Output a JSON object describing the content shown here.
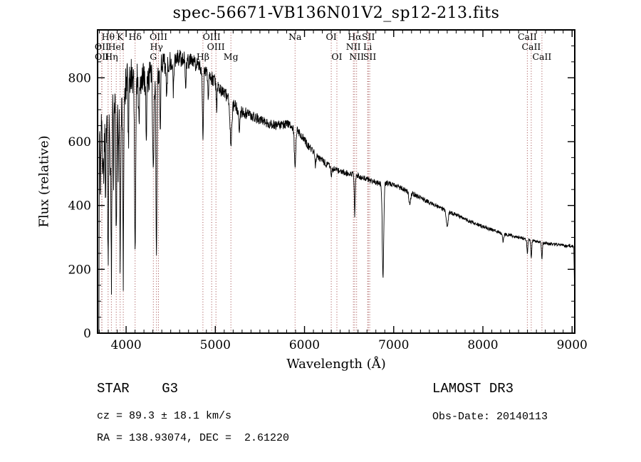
{
  "title": "spec-56671-VB136N01V2_sp12-213.fits",
  "chart_data": {
    "type": "line",
    "title": "spec-56671-VB136N01V2_sp12-213.fits",
    "xlabel": "Wavelength (Å)",
    "ylabel": "Flux (relative)",
    "xlim": [
      3680,
      9030
    ],
    "ylim": [
      0,
      950
    ],
    "xticks": [
      4000,
      5000,
      6000,
      7000,
      8000,
      9000
    ],
    "yticks": [
      0,
      200,
      400,
      600,
      800
    ],
    "x_minor_step": 100,
    "y_minor_step": 50,
    "grid": false,
    "legend": "none",
    "line_color": "#000000",
    "marker_line_color": "#a04848",
    "sample_step": 3,
    "continuum": [
      [
        3695,
        0
      ],
      [
        3700,
        620
      ],
      [
        3715,
        690
      ],
      [
        3730,
        665
      ],
      [
        3745,
        690
      ],
      [
        3760,
        670
      ],
      [
        3780,
        690
      ],
      [
        3800,
        700
      ],
      [
        3830,
        715
      ],
      [
        3860,
        720
      ],
      [
        3900,
        730
      ],
      [
        3940,
        720
      ],
      [
        3970,
        710
      ],
      [
        4000,
        790
      ],
      [
        4040,
        805
      ],
      [
        4080,
        800
      ],
      [
        4120,
        795
      ],
      [
        4160,
        790
      ],
      [
        4200,
        800
      ],
      [
        4240,
        795
      ],
      [
        4280,
        820
      ],
      [
        4320,
        825
      ],
      [
        4360,
        820
      ],
      [
        4400,
        840
      ],
      [
        4450,
        850
      ],
      [
        4500,
        855
      ],
      [
        4550,
        860
      ],
      [
        4600,
        862
      ],
      [
        4650,
        858
      ],
      [
        4700,
        853
      ],
      [
        4750,
        848
      ],
      [
        4800,
        843
      ],
      [
        4850,
        830
      ],
      [
        4900,
        812
      ],
      [
        4950,
        800
      ],
      [
        5000,
        785
      ],
      [
        5050,
        765
      ],
      [
        5100,
        750
      ],
      [
        5150,
        735
      ],
      [
        5200,
        715
      ],
      [
        5250,
        705
      ],
      [
        5300,
        695
      ],
      [
        5350,
        688
      ],
      [
        5400,
        683
      ],
      [
        5450,
        675
      ],
      [
        5500,
        668
      ],
      [
        5550,
        662
      ],
      [
        5600,
        657
      ],
      [
        5650,
        653
      ],
      [
        5700,
        650
      ],
      [
        5750,
        652
      ],
      [
        5800,
        655
      ],
      [
        5850,
        650
      ],
      [
        5900,
        640
      ],
      [
        5950,
        625
      ],
      [
        6000,
        605
      ],
      [
        6050,
        585
      ],
      [
        6100,
        568
      ],
      [
        6150,
        553
      ],
      [
        6200,
        540
      ],
      [
        6250,
        528
      ],
      [
        6300,
        518
      ],
      [
        6350,
        512
      ],
      [
        6400,
        508
      ],
      [
        6450,
        503
      ],
      [
        6500,
        500
      ],
      [
        6550,
        497
      ],
      [
        6600,
        492
      ],
      [
        6650,
        487
      ],
      [
        6700,
        482
      ],
      [
        6750,
        477
      ],
      [
        6800,
        472
      ],
      [
        6850,
        468
      ],
      [
        6900,
        470
      ],
      [
        6950,
        468
      ],
      [
        7000,
        465
      ],
      [
        7100,
        452
      ],
      [
        7200,
        438
      ],
      [
        7300,
        424
      ],
      [
        7400,
        410
      ],
      [
        7500,
        396
      ],
      [
        7600,
        383
      ],
      [
        7700,
        370
      ],
      [
        7800,
        357
      ],
      [
        7900,
        345
      ],
      [
        8000,
        334
      ],
      [
        8100,
        324
      ],
      [
        8200,
        315
      ],
      [
        8300,
        307
      ],
      [
        8400,
        300
      ],
      [
        8500,
        293
      ],
      [
        8600,
        287
      ],
      [
        8700,
        282
      ],
      [
        8800,
        278
      ],
      [
        8900,
        275
      ],
      [
        9000,
        272
      ],
      [
        9020,
        270
      ],
      [
        9028,
        120
      ],
      [
        9030,
        0
      ]
    ],
    "absorption_lines": [
      [
        3712,
        180,
        4
      ],
      [
        3735,
        220,
        4
      ],
      [
        3750,
        260,
        4
      ],
      [
        3770,
        300,
        4
      ],
      [
        3798,
        480,
        5
      ],
      [
        3820,
        200,
        4
      ],
      [
        3835,
        540,
        5
      ],
      [
        3860,
        250,
        4
      ],
      [
        3889,
        450,
        5
      ],
      [
        3912,
        200,
        4
      ],
      [
        3933,
        500,
        5
      ],
      [
        3968,
        520,
        5
      ],
      [
        4026,
        200,
        5
      ],
      [
        4101,
        560,
        6
      ],
      [
        4144,
        150,
        5
      ],
      [
        4226,
        160,
        5
      ],
      [
        4305,
        280,
        8
      ],
      [
        4340,
        580,
        6
      ],
      [
        4383,
        180,
        5
      ],
      [
        4455,
        120,
        5
      ],
      [
        4531,
        100,
        5
      ],
      [
        4668,
        100,
        5
      ],
      [
        4861,
        230,
        6
      ],
      [
        4920,
        80,
        5
      ],
      [
        5015,
        70,
        5
      ],
      [
        5175,
        130,
        10
      ],
      [
        5270,
        60,
        8
      ],
      [
        5894,
        115,
        8
      ],
      [
        6122,
        40,
        6
      ],
      [
        6300,
        30,
        5
      ],
      [
        6563,
        125,
        5
      ],
      [
        6880,
        290,
        8
      ],
      [
        7180,
        35,
        10
      ],
      [
        7600,
        50,
        10
      ],
      [
        8227,
        25,
        8
      ],
      [
        8498,
        40,
        5
      ],
      [
        8542,
        55,
        5
      ],
      [
        8662,
        55,
        5
      ]
    ],
    "noise_level": [
      [
        3695,
        75
      ],
      [
        4000,
        60
      ],
      [
        4300,
        45
      ],
      [
        4600,
        28
      ],
      [
        4900,
        24
      ],
      [
        5200,
        20
      ],
      [
        5500,
        16
      ],
      [
        5800,
        14
      ],
      [
        6100,
        12
      ],
      [
        6400,
        10
      ],
      [
        6700,
        9
      ],
      [
        7000,
        8
      ],
      [
        7500,
        7
      ],
      [
        8000,
        6
      ],
      [
        8500,
        5
      ],
      [
        9030,
        5
      ]
    ],
    "spectral_markers": [
      {
        "wavelength": 3798,
        "label": "Hθ",
        "row": 1
      },
      {
        "wavelength": 3933,
        "label": "K",
        "row": 1
      },
      {
        "wavelength": 3968,
        "label": "",
        "row": 1
      },
      {
        "wavelength": 4101,
        "label": "Hδ",
        "row": 1
      },
      {
        "wavelength": 4363,
        "label": "OIII",
        "row": 1
      },
      {
        "wavelength": 4959,
        "label": "OIII",
        "row": 1
      },
      {
        "wavelength": 5894,
        "label": "Na",
        "row": 1
      },
      {
        "wavelength": 6300,
        "label": "OI",
        "row": 1
      },
      {
        "wavelength": 6563,
        "label": "Hα",
        "row": 1
      },
      {
        "wavelength": 6716,
        "label": "SII",
        "row": 1
      },
      {
        "wavelength": 8498,
        "label": "CaII",
        "row": 1
      },
      {
        "wavelength": 3727,
        "label": "OII",
        "row": 2
      },
      {
        "wavelength": 3889,
        "label": "HeI",
        "row": 2
      },
      {
        "wavelength": 4340,
        "label": "Hγ",
        "row": 2
      },
      {
        "wavelength": 5007,
        "label": "OIII",
        "row": 2
      },
      {
        "wavelength": 6548,
        "label": "NII",
        "row": 2
      },
      {
        "wavelength": 6708,
        "label": "Li",
        "row": 2
      },
      {
        "wavelength": 8542,
        "label": "CaII",
        "row": 2
      },
      {
        "wavelength": 3729,
        "label": "OII",
        "row": 3
      },
      {
        "wavelength": 3835,
        "label": "Hη",
        "row": 3
      },
      {
        "wavelength": 4305,
        "label": "G",
        "row": 3
      },
      {
        "wavelength": 4861,
        "label": "Hβ",
        "row": 3
      },
      {
        "wavelength": 5175,
        "label": "Mg",
        "row": 3
      },
      {
        "wavelength": 6363,
        "label": "OI",
        "row": 3
      },
      {
        "wavelength": 6584,
        "label": "NII",
        "row": 3
      },
      {
        "wavelength": 6731,
        "label": "SII",
        "row": 3
      },
      {
        "wavelength": 8662,
        "label": "CaII",
        "row": 3
      }
    ]
  },
  "footer": {
    "left_title": "STAR    G3",
    "right_title": "LAMOST DR3",
    "cz": "cz = 89.3 ± 18.1 km/s",
    "obs_date": "Obs-Date: 20140113",
    "ra_dec": "RA = 138.93074, DEC =  2.61220"
  }
}
